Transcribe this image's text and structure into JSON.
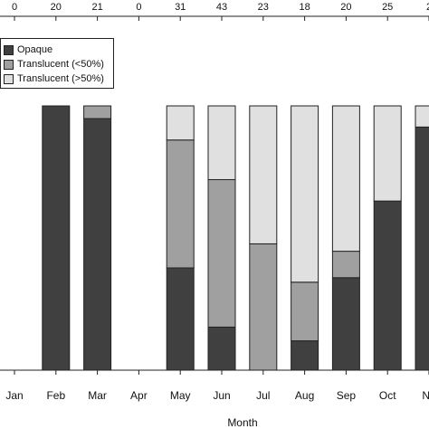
{
  "chart_data": {
    "type": "bar",
    "stacked": true,
    "categories": [
      "Jan",
      "Feb",
      "Mar",
      "Apr",
      "May",
      "Jun",
      "Jul",
      "Aug",
      "Sep",
      "Oct",
      "Nov"
    ],
    "category_labels": [
      "Jan",
      "Feb",
      "Mar",
      "Apr",
      "May",
      "Jun",
      "Jul",
      "Aug",
      "Sep",
      "Oct",
      "Ne"
    ],
    "sample_sizes": [
      "0",
      "20",
      "21",
      "0",
      "31",
      "43",
      "23",
      "18",
      "20",
      "25",
      "2"
    ],
    "xlabel": "Month",
    "ylabel": "",
    "ylim": [
      0,
      1
    ],
    "legend_position": "top-left",
    "series": [
      {
        "name": "Opaque",
        "color": "#404040",
        "values": [
          0,
          1.0,
          0.952,
          0,
          0.387,
          0.163,
          0,
          0.111,
          0.35,
          0.64,
          0.92
        ]
      },
      {
        "name": "Translucent (<50%)",
        "color": "#a0a0a0",
        "values": [
          0,
          0,
          0.048,
          0,
          0.484,
          0.558,
          0.478,
          0.222,
          0.1,
          0,
          0
        ]
      },
      {
        "name": "Translucent (>50%)",
        "color": "#e0e0e0",
        "values": [
          0,
          0,
          0,
          0,
          0.129,
          0.279,
          0.522,
          0.667,
          0.55,
          0.36,
          0.08
        ]
      }
    ]
  }
}
